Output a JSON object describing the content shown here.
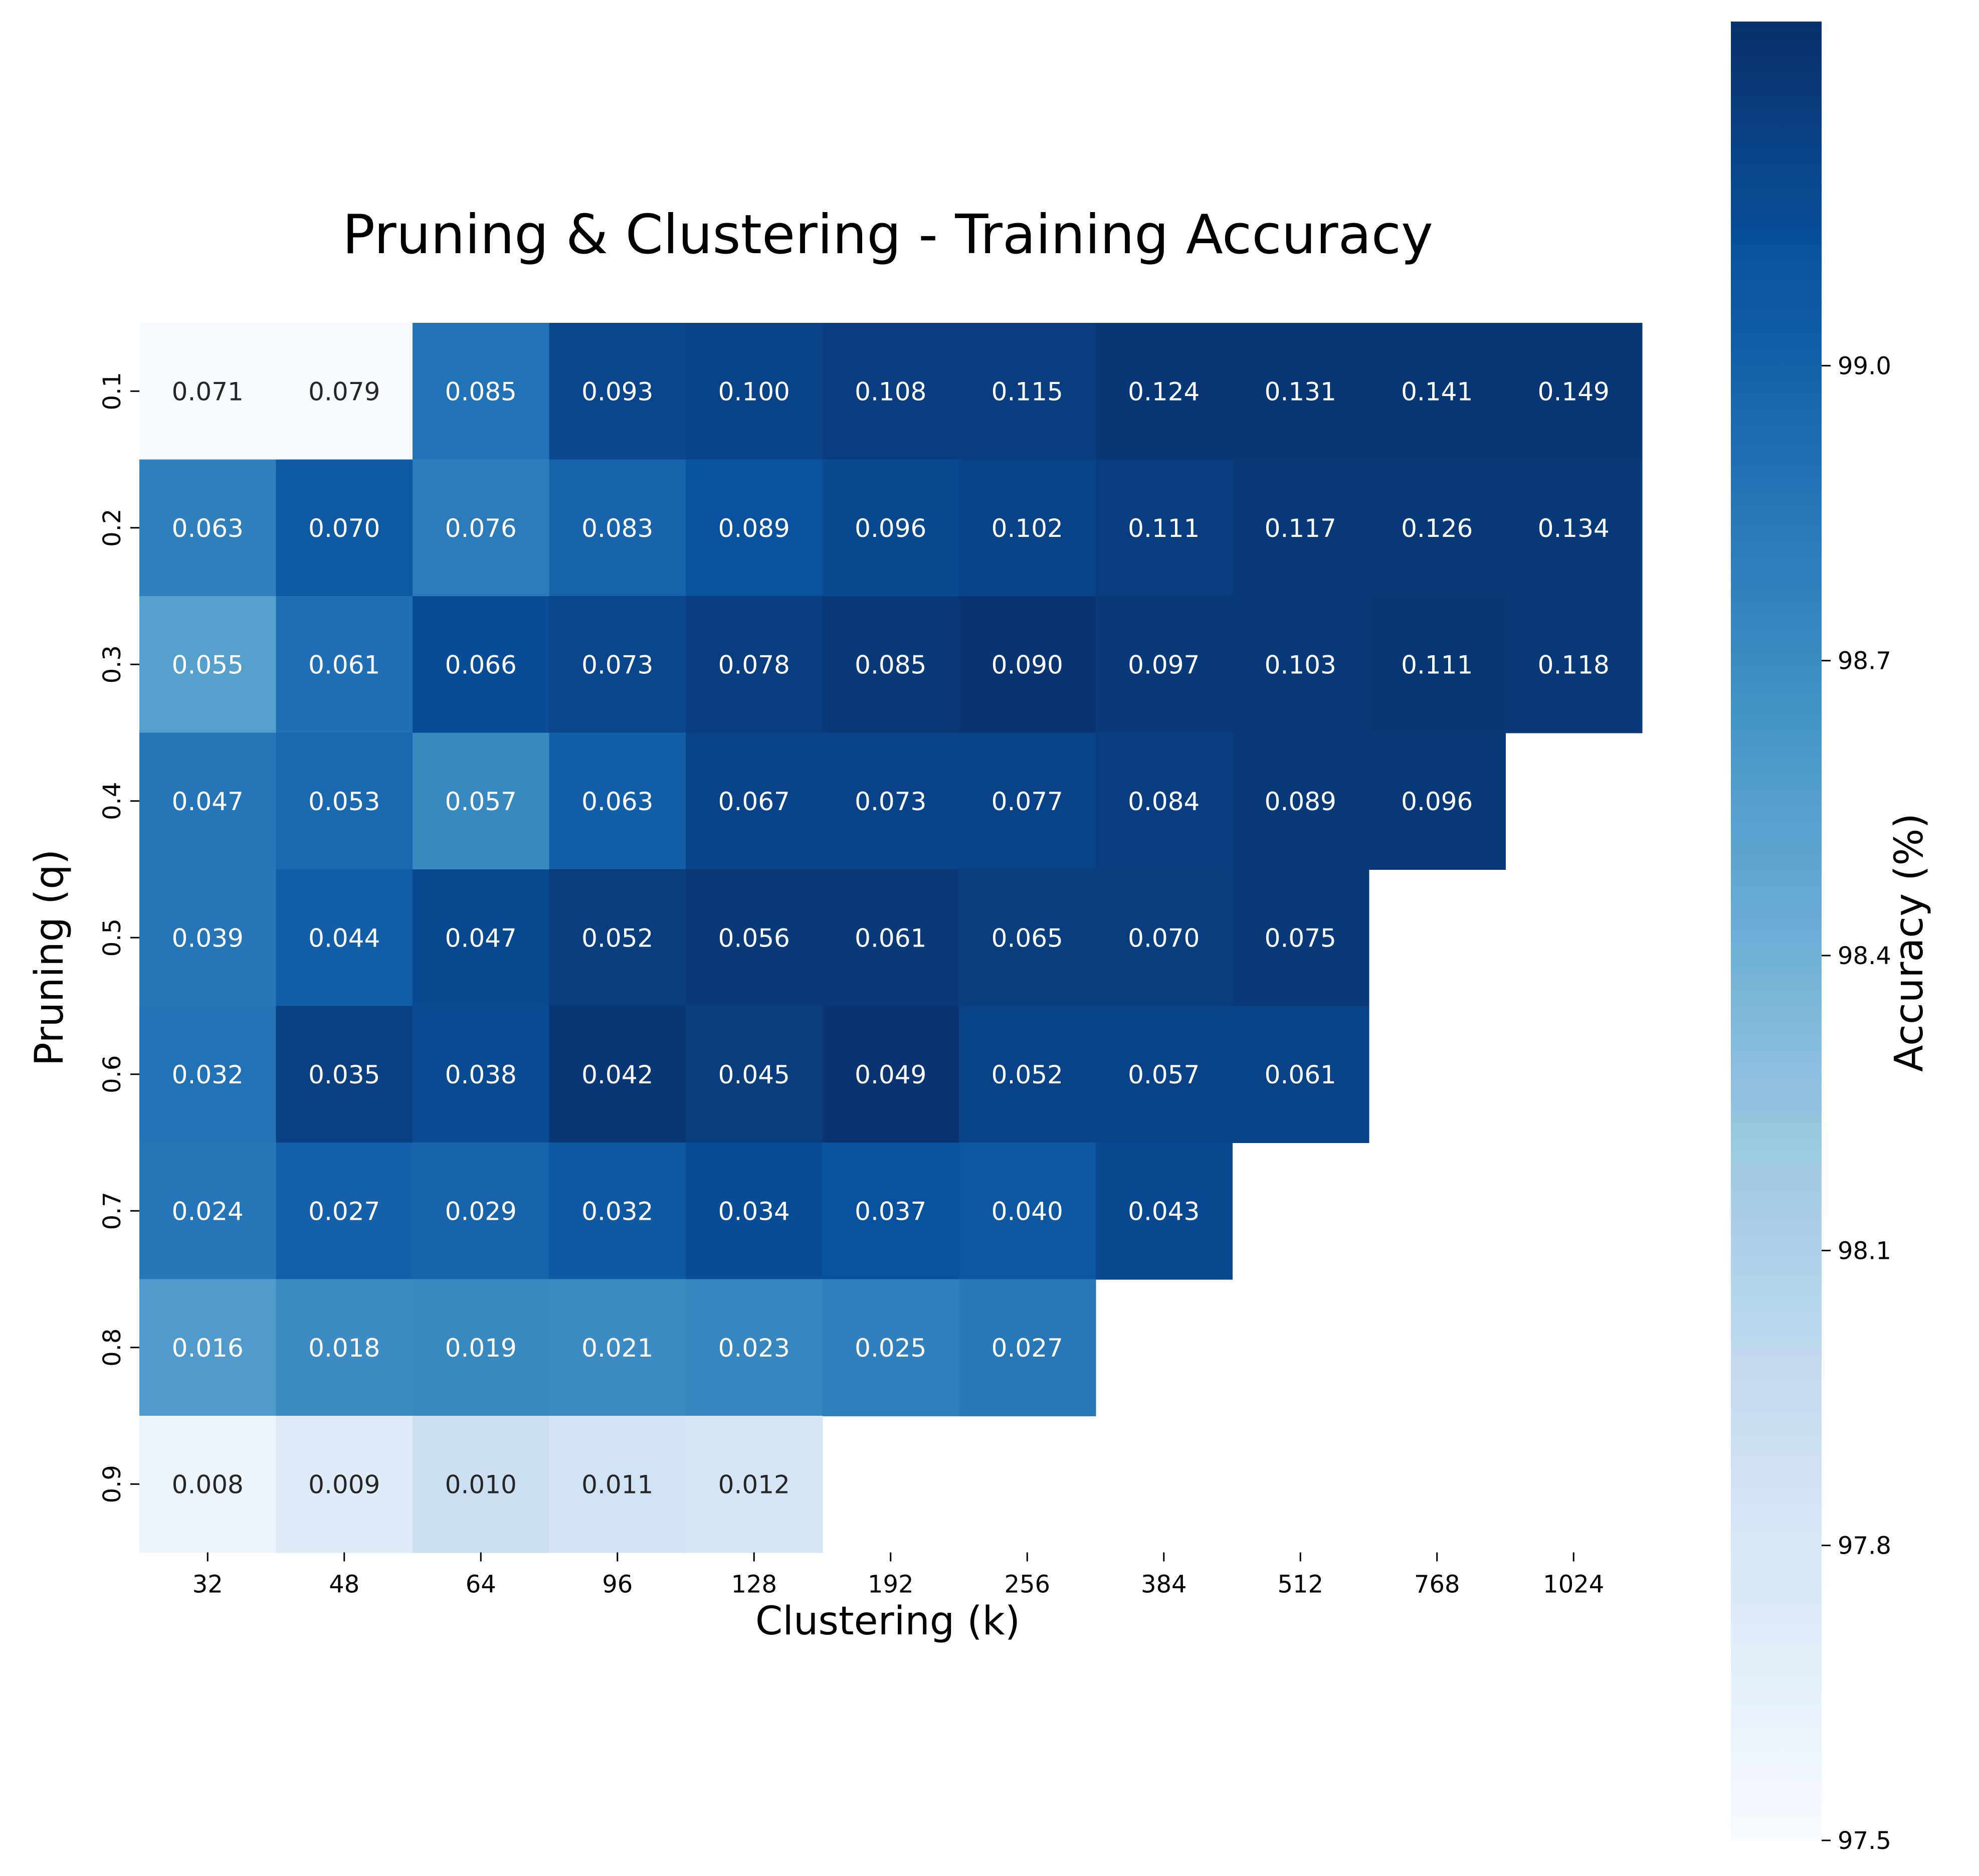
{
  "chart_data": {
    "type": "heatmap",
    "title": "Pruning & Clustering - Training Accuracy",
    "xlabel": "Clustering (k)",
    "ylabel": "Pruning (q)",
    "x_categories": [
      "32",
      "48",
      "64",
      "96",
      "128",
      "192",
      "256",
      "384",
      "512",
      "768",
      "1024"
    ],
    "y_categories": [
      "0.1",
      "0.2",
      "0.3",
      "0.4",
      "0.5",
      "0.6",
      "0.7",
      "0.8",
      "0.9"
    ],
    "accuracy": [
      [
        97.5,
        97.5,
        98.88,
        99.2,
        99.22,
        99.25,
        99.25,
        99.3,
        99.3,
        99.3,
        99.3
      ],
      [
        98.78,
        99.05,
        98.82,
        98.98,
        99.12,
        99.18,
        99.22,
        99.25,
        99.28,
        99.28,
        99.28
      ],
      [
        98.55,
        98.9,
        99.15,
        99.2,
        99.25,
        99.28,
        99.32,
        99.28,
        99.28,
        99.3,
        99.28
      ],
      [
        98.86,
        98.95,
        98.72,
        99.02,
        99.22,
        99.22,
        99.22,
        99.25,
        99.28,
        99.28,
        null
      ],
      [
        98.86,
        99.02,
        99.18,
        99.26,
        99.28,
        99.28,
        99.26,
        99.26,
        99.28,
        null,
        null
      ],
      [
        98.88,
        99.24,
        99.16,
        99.3,
        99.26,
        99.32,
        99.22,
        99.22,
        99.22,
        null,
        null
      ],
      [
        98.86,
        99.0,
        98.98,
        99.06,
        99.15,
        99.12,
        99.07,
        99.18,
        null,
        null,
        null
      ],
      [
        98.58,
        98.7,
        98.72,
        98.7,
        98.74,
        98.78,
        98.84,
        null,
        null,
        null,
        null
      ],
      [
        97.6,
        97.72,
        97.9,
        97.86,
        97.82,
        null,
        null,
        null,
        null,
        null,
        null
      ]
    ],
    "annotations": [
      [
        "0.071",
        "0.079",
        "0.085",
        "0.093",
        "0.100",
        "0.108",
        "0.115",
        "0.124",
        "0.131",
        "0.141",
        "0.149"
      ],
      [
        "0.063",
        "0.070",
        "0.076",
        "0.083",
        "0.089",
        "0.096",
        "0.102",
        "0.111",
        "0.117",
        "0.126",
        "0.134"
      ],
      [
        "0.055",
        "0.061",
        "0.066",
        "0.073",
        "0.078",
        "0.085",
        "0.090",
        "0.097",
        "0.103",
        "0.111",
        "0.118"
      ],
      [
        "0.047",
        "0.053",
        "0.057",
        "0.063",
        "0.067",
        "0.073",
        "0.077",
        "0.084",
        "0.089",
        "0.096",
        ""
      ],
      [
        "0.039",
        "0.044",
        "0.047",
        "0.052",
        "0.056",
        "0.061",
        "0.065",
        "0.070",
        "0.075",
        "",
        ""
      ],
      [
        "0.032",
        "0.035",
        "0.038",
        "0.042",
        "0.045",
        "0.049",
        "0.052",
        "0.057",
        "0.061",
        "",
        ""
      ],
      [
        "0.024",
        "0.027",
        "0.029",
        "0.032",
        "0.034",
        "0.037",
        "0.040",
        "0.043",
        "",
        "",
        ""
      ],
      [
        "0.016",
        "0.018",
        "0.019",
        "0.021",
        "0.023",
        "0.025",
        "0.027",
        "",
        "",
        "",
        ""
      ],
      [
        "0.008",
        "0.009",
        "0.010",
        "0.011",
        "0.012",
        "",
        "",
        "",
        "",
        "",
        ""
      ]
    ],
    "colorbar": {
      "label": "Accuracy (%)",
      "range": [
        97.5,
        99.35
      ],
      "ticks": [
        "97.5",
        "97.8",
        "98.1",
        "98.4",
        "98.7",
        "99.0"
      ],
      "colormap": "Blues"
    },
    "grid": false
  }
}
